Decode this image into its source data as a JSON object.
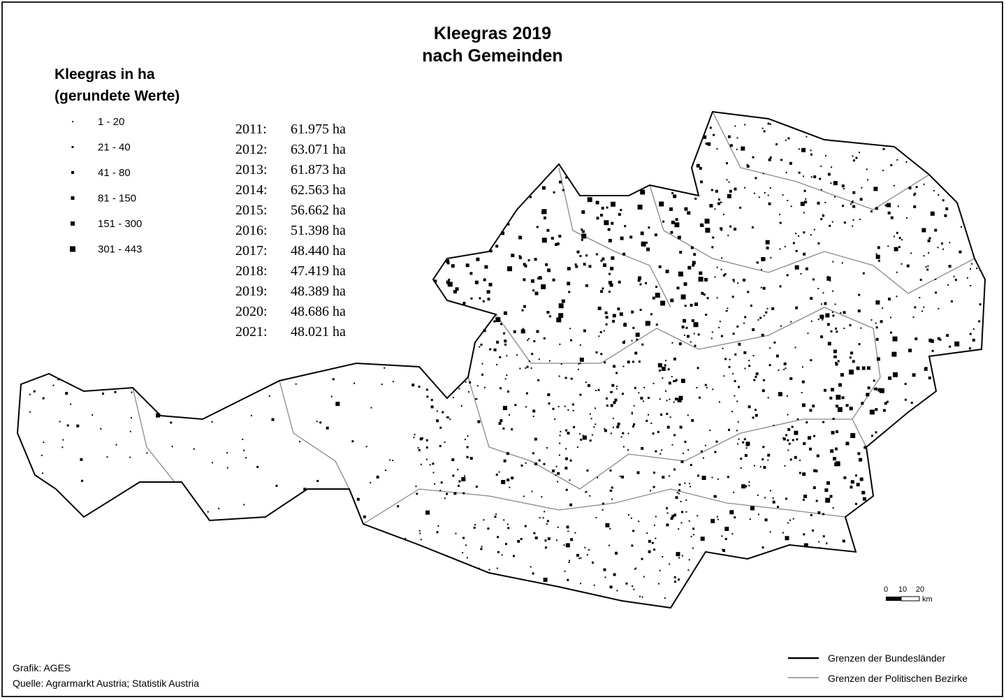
{
  "title": [
    "Kleegras 2019",
    "nach Gemeinden"
  ],
  "legend": {
    "title": [
      "Kleegras in ha",
      "(gerundete Werte)"
    ],
    "items": [
      "1 - 20",
      "21 - 40",
      "41 - 80",
      "81 - 150",
      "151 - 300",
      "301 - 443"
    ]
  },
  "history": [
    {
      "year": "2011:",
      "area": "61.975 ha"
    },
    {
      "year": "2012:",
      "area": "63.071 ha"
    },
    {
      "year": "2013:",
      "area": "61.873 ha"
    },
    {
      "year": "2014:",
      "area": "62.563 ha"
    },
    {
      "year": "2015:",
      "area": "56.662 ha"
    },
    {
      "year": "2016:",
      "area": "51.398 ha"
    },
    {
      "year": "2017:",
      "area": "48.440 ha"
    },
    {
      "year": "2018:",
      "area": "47.419 ha"
    },
    {
      "year": "2019:",
      "area": "48.389 ha"
    },
    {
      "year": "2020:",
      "area": "48.686 ha"
    },
    {
      "year": "2021:",
      "area": "48.021 ha"
    }
  ],
  "scale": {
    "ticks": [
      "0",
      "10",
      "20"
    ],
    "unit": "km"
  },
  "boundaries": [
    "Grenzen der Bundesländer",
    "Grenzen der Politischen Bezirke"
  ],
  "credits": [
    "Grafik: AGES",
    "Quelle: Agrarmarkt Austria; Statistik Austria"
  ]
}
